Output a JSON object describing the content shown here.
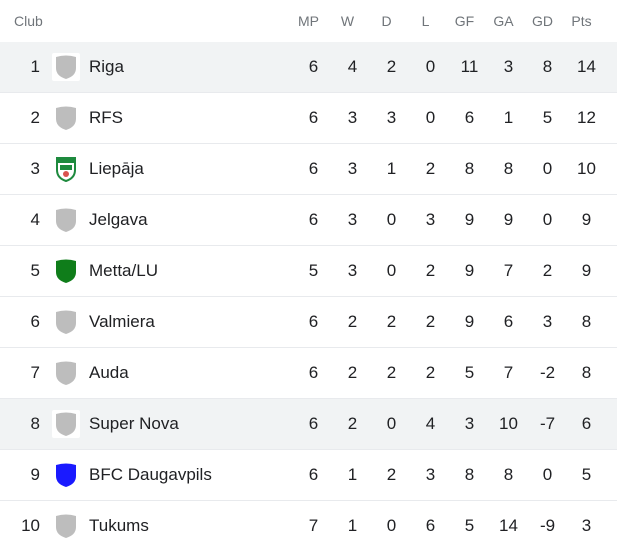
{
  "header": {
    "club": "Club",
    "columns": [
      "MP",
      "W",
      "D",
      "L",
      "GF",
      "GA",
      "GD",
      "Pts"
    ]
  },
  "rows": [
    {
      "pos": "1",
      "club": "Riga",
      "logo": "shield-icon",
      "color": "#bdbdbd",
      "highlight": true,
      "stats": [
        "6",
        "4",
        "2",
        "0",
        "11",
        "3",
        "8",
        "14"
      ]
    },
    {
      "pos": "2",
      "club": "RFS",
      "logo": "shield-icon",
      "color": "#bdbdbd",
      "highlight": false,
      "stats": [
        "6",
        "3",
        "3",
        "0",
        "6",
        "1",
        "5",
        "12"
      ]
    },
    {
      "pos": "3",
      "club": "Liepāja",
      "logo": "liepaja-crest-icon",
      "color": "#1e8a3e",
      "highlight": false,
      "stats": [
        "6",
        "3",
        "1",
        "2",
        "8",
        "8",
        "0",
        "10"
      ]
    },
    {
      "pos": "4",
      "club": "Jelgava",
      "logo": "shield-icon",
      "color": "#bdbdbd",
      "highlight": false,
      "stats": [
        "6",
        "3",
        "0",
        "3",
        "9",
        "9",
        "0",
        "9"
      ]
    },
    {
      "pos": "5",
      "club": "Metta/LU",
      "logo": "shield-icon",
      "color": "#0f7d1a",
      "highlight": false,
      "stats": [
        "5",
        "3",
        "0",
        "2",
        "9",
        "7",
        "2",
        "9"
      ]
    },
    {
      "pos": "6",
      "club": "Valmiera",
      "logo": "shield-icon",
      "color": "#bdbdbd",
      "highlight": false,
      "stats": [
        "6",
        "2",
        "2",
        "2",
        "9",
        "6",
        "3",
        "8"
      ]
    },
    {
      "pos": "7",
      "club": "Auda",
      "logo": "shield-icon",
      "color": "#bdbdbd",
      "highlight": false,
      "stats": [
        "6",
        "2",
        "2",
        "2",
        "5",
        "7",
        "-2",
        "8"
      ]
    },
    {
      "pos": "8",
      "club": "Super Nova",
      "logo": "shield-icon",
      "color": "#bdbdbd",
      "highlight": true,
      "stats": [
        "6",
        "2",
        "0",
        "4",
        "3",
        "10",
        "-7",
        "6"
      ]
    },
    {
      "pos": "9",
      "club": "BFC Daugavpils",
      "logo": "shield-icon",
      "color": "#1a1aff",
      "highlight": false,
      "stats": [
        "6",
        "1",
        "2",
        "3",
        "8",
        "8",
        "0",
        "5"
      ]
    },
    {
      "pos": "10",
      "club": "Tukums",
      "logo": "shield-icon",
      "color": "#bdbdbd",
      "highlight": false,
      "stats": [
        "7",
        "1",
        "0",
        "6",
        "5",
        "14",
        "-9",
        "3"
      ]
    }
  ]
}
